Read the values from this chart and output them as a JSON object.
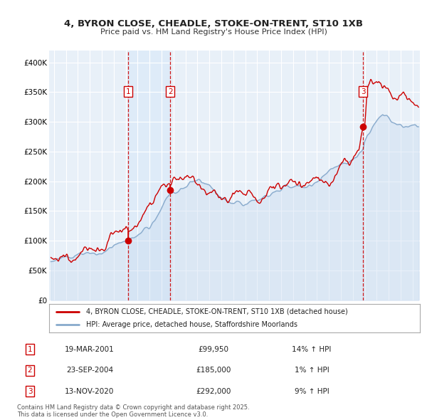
{
  "title_line1": "4, BYRON CLOSE, CHEADLE, STOKE-ON-TRENT, ST10 1XB",
  "title_line2": "Price paid vs. HM Land Registry's House Price Index (HPI)",
  "background_color": "#ffffff",
  "plot_bg_color": "#e8f0f8",
  "grid_color": "#ffffff",
  "sale_dates_num": [
    2001.22,
    2004.73,
    2020.87
  ],
  "sale_prices": [
    99950,
    185000,
    292000
  ],
  "sale_labels": [
    "1",
    "2",
    "3"
  ],
  "sale_label_details": [
    {
      "num": "1",
      "date": "19-MAR-2001",
      "price": "£99,950",
      "hpi": "14% ↑ HPI"
    },
    {
      "num": "2",
      "date": "23-SEP-2004",
      "price": "£185,000",
      "hpi": "1% ↑ HPI"
    },
    {
      "num": "3",
      "date": "13-NOV-2020",
      "price": "£292,000",
      "hpi": "9% ↑ HPI"
    }
  ],
  "legend_line1": "4, BYRON CLOSE, CHEADLE, STOKE-ON-TRENT, ST10 1XB (detached house)",
  "legend_line2": "HPI: Average price, detached house, Staffordshire Moorlands",
  "footer": "Contains HM Land Registry data © Crown copyright and database right 2025.\nThis data is licensed under the Open Government Licence v3.0.",
  "xmin": 1994.6,
  "xmax": 2025.6,
  "ymin": 0,
  "ymax": 420000,
  "yticks": [
    0,
    50000,
    100000,
    150000,
    200000,
    250000,
    300000,
    350000,
    400000
  ],
  "ytick_labels": [
    "£0",
    "£50K",
    "£100K",
    "£150K",
    "£200K",
    "£250K",
    "£300K",
    "£350K",
    "£400K"
  ],
  "line_color_red": "#cc0000",
  "line_color_blue": "#88aacc",
  "fill_color_blue": "#c8daf0",
  "vline_color": "#cc0000",
  "box_color": "#cc0000",
  "shade_color": "#d8e8f8"
}
